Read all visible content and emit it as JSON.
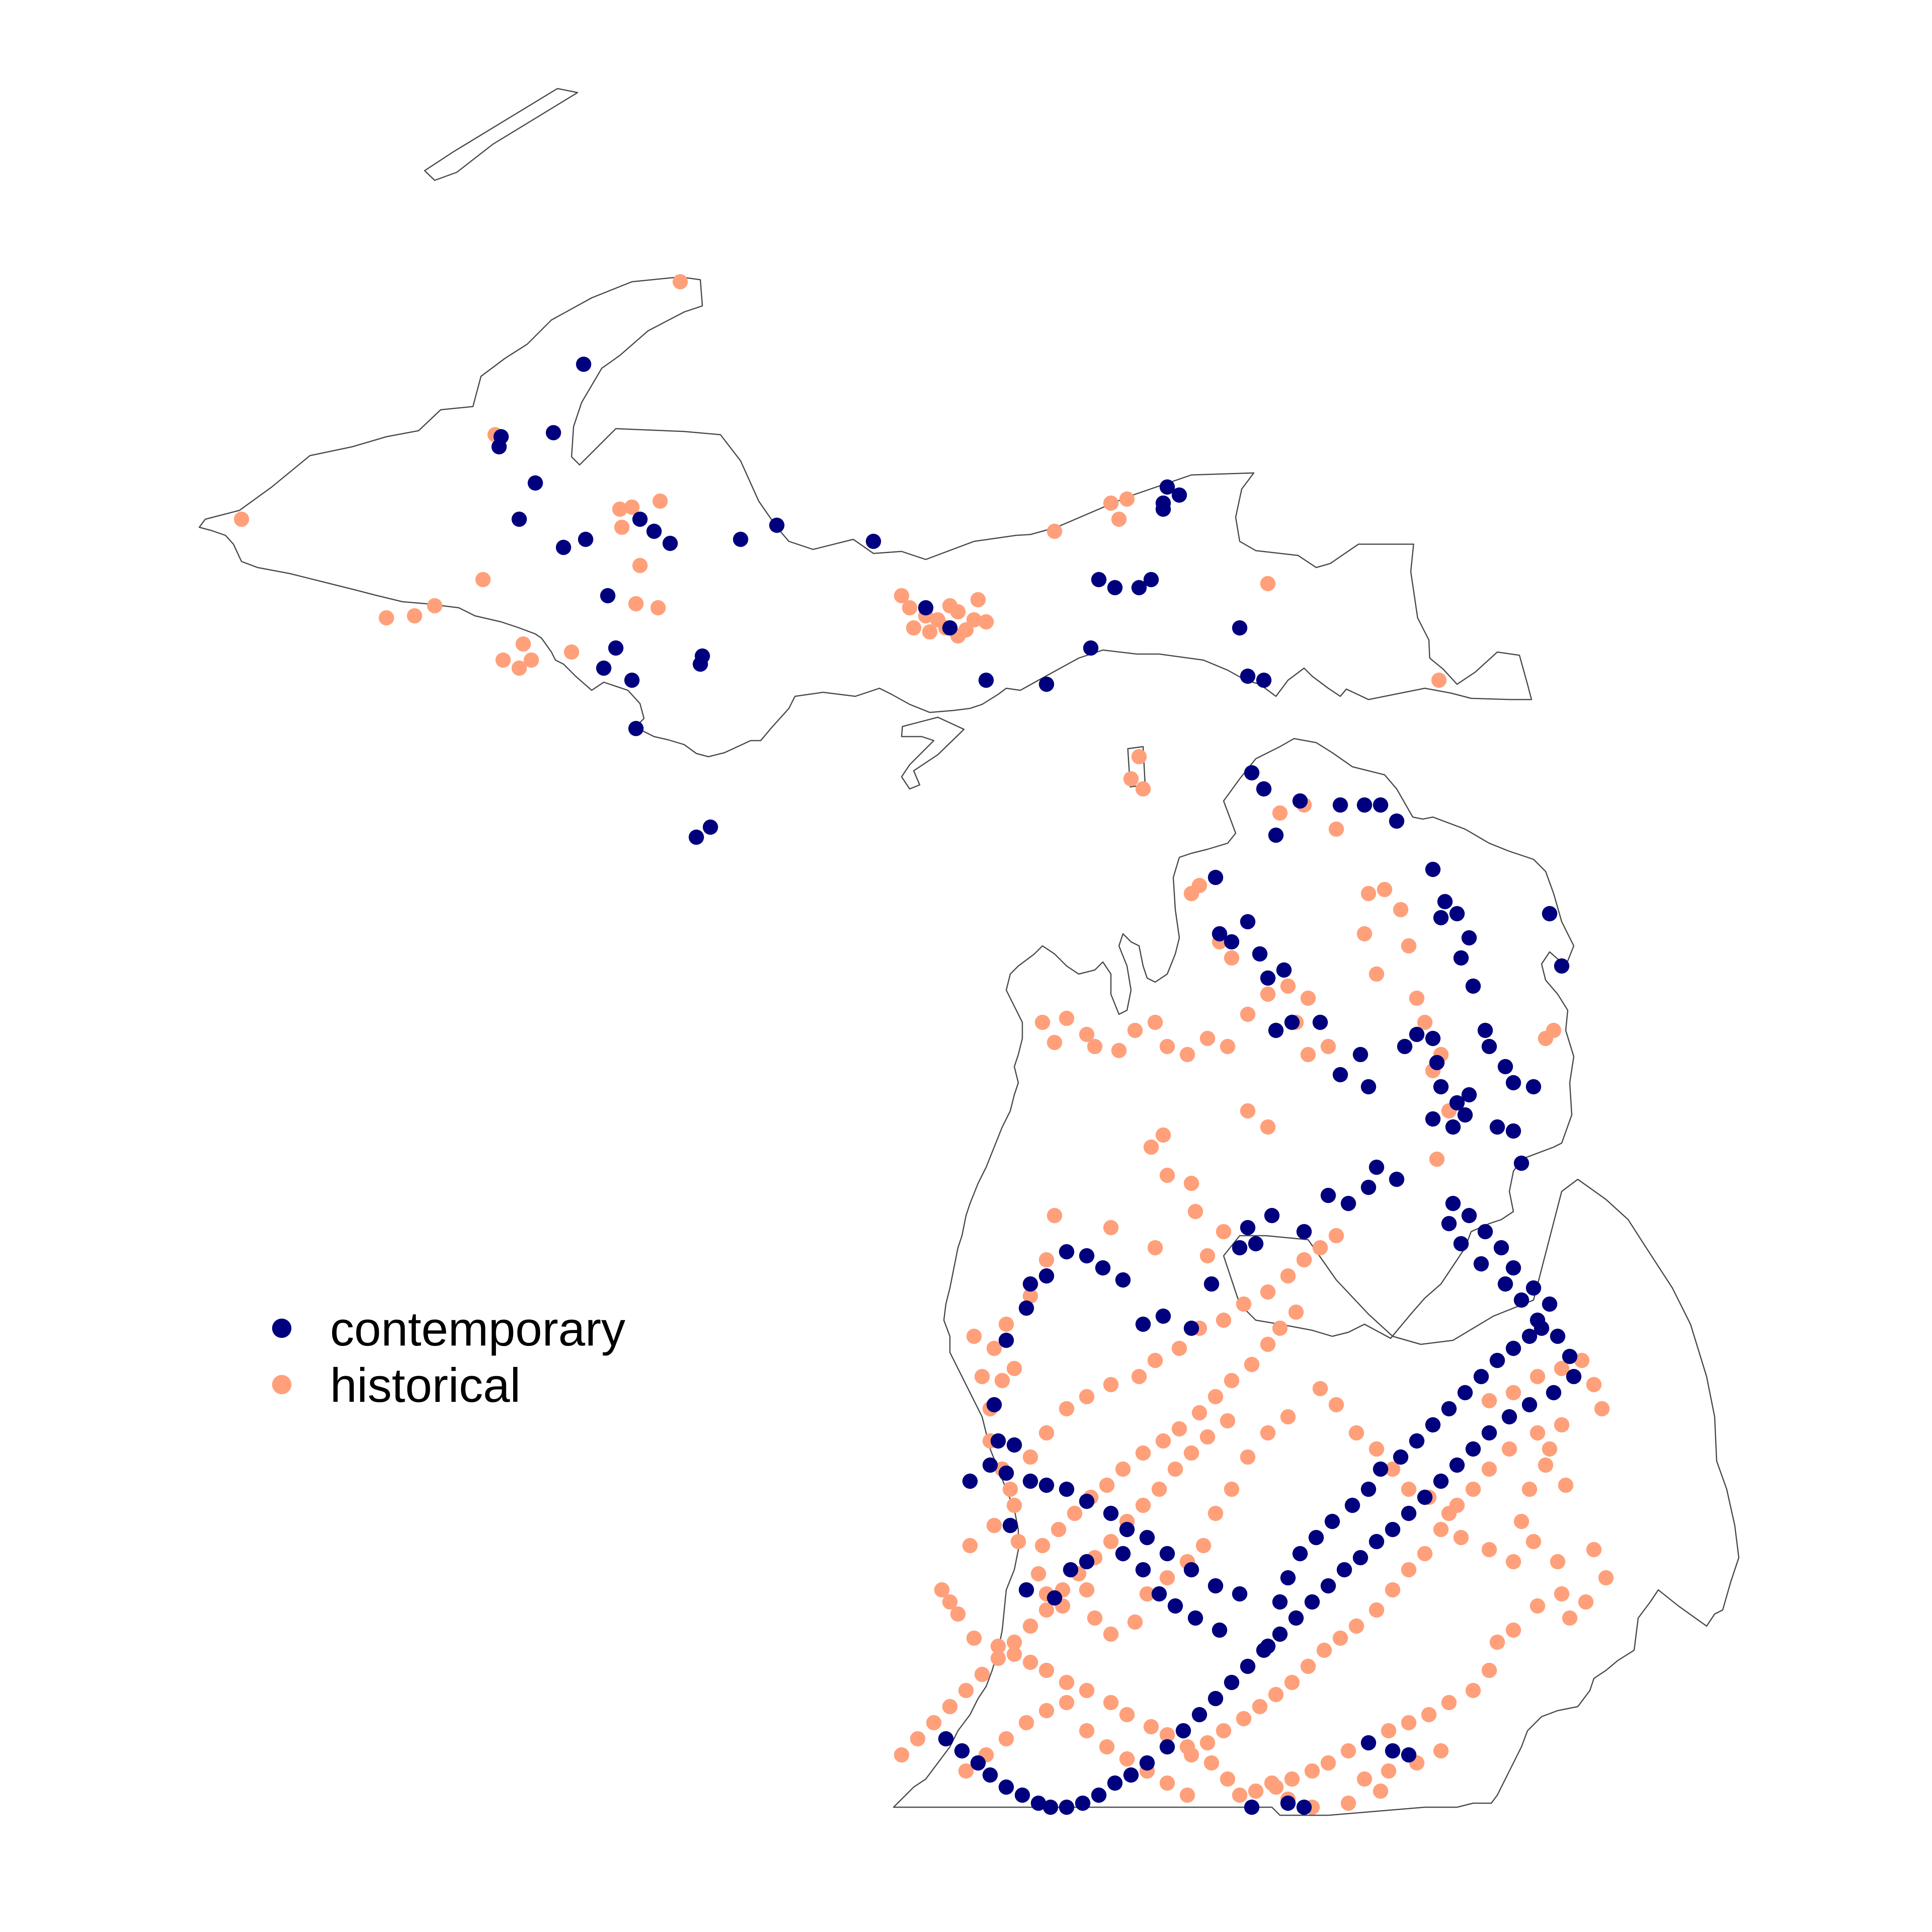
{
  "colors": {
    "contemporary": "#00007f",
    "historical": "#ffa07a",
    "outline": "#4a4a4a",
    "background": "#ffffff"
  },
  "legend": {
    "items": [
      {
        "label": "contemporary",
        "color": "#00007f",
        "marker": "dot"
      },
      {
        "label": "historical",
        "color": "#ffa07a",
        "marker": "dot"
      }
    ]
  },
  "map": {
    "region": "Michigan",
    "layers": [
      "state outline",
      "site points"
    ],
    "point_categories": [
      "contemporary",
      "historical"
    ]
  }
}
